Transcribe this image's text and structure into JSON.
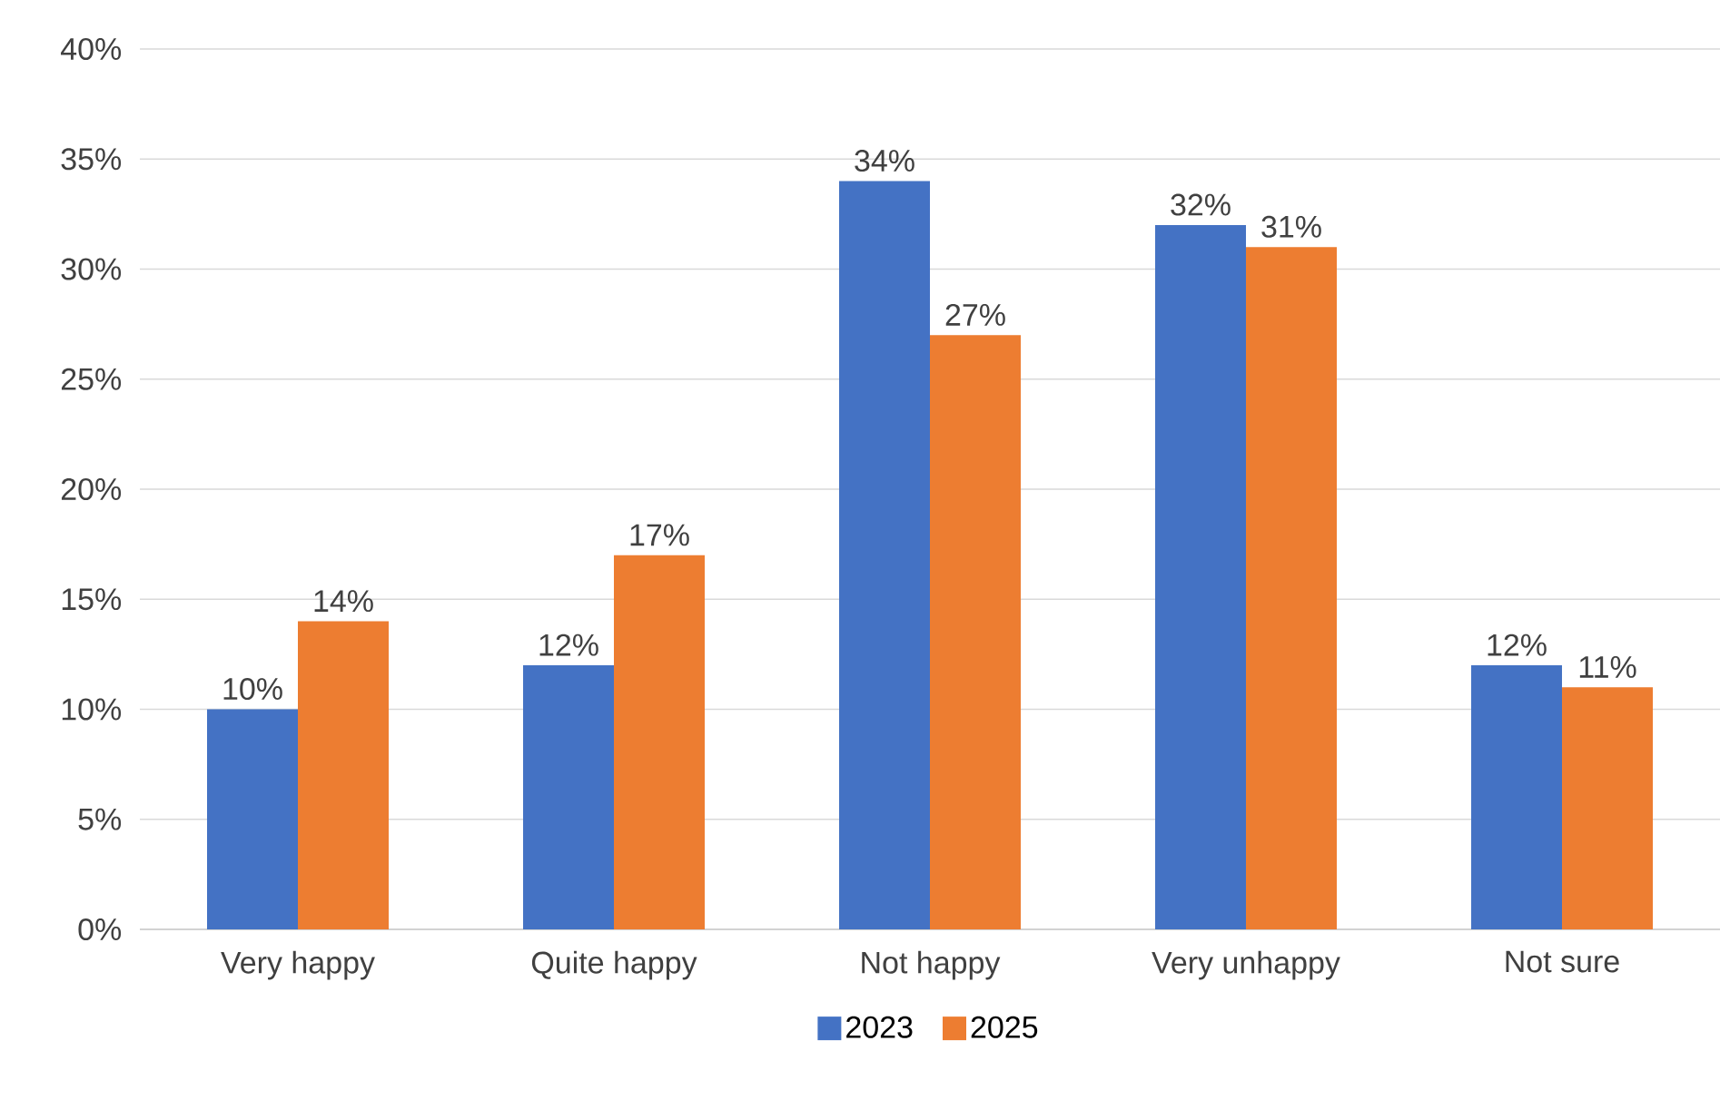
{
  "chart_data": {
    "type": "bar",
    "categories": [
      "Very happy",
      "Quite happy",
      "Not happy",
      "Very unhappy",
      "Not sure"
    ],
    "series": [
      {
        "name": "2023",
        "color": "#4472c4",
        "values": [
          10,
          12,
          34,
          32,
          12
        ],
        "value_labels": [
          "10%",
          "12%",
          "34%",
          "32%",
          "12%"
        ]
      },
      {
        "name": "2025",
        "color": "#ed7d31",
        "values": [
          14,
          17,
          27,
          31,
          11
        ],
        "value_labels": [
          "14%",
          "17%",
          "27%",
          "31%",
          "11%"
        ]
      }
    ],
    "ylim": [
      0,
      40
    ],
    "yticks": [
      {
        "value": 0,
        "label": "0%"
      },
      {
        "value": 5,
        "label": "5%"
      },
      {
        "value": 10,
        "label": "10%"
      },
      {
        "value": 15,
        "label": "15%"
      },
      {
        "value": 20,
        "label": "20%"
      },
      {
        "value": 25,
        "label": "25%"
      },
      {
        "value": 30,
        "label": "30%"
      },
      {
        "value": 35,
        "label": "35%"
      },
      {
        "value": 40,
        "label": "40%"
      }
    ],
    "grid": "y",
    "legend": "bottom"
  }
}
